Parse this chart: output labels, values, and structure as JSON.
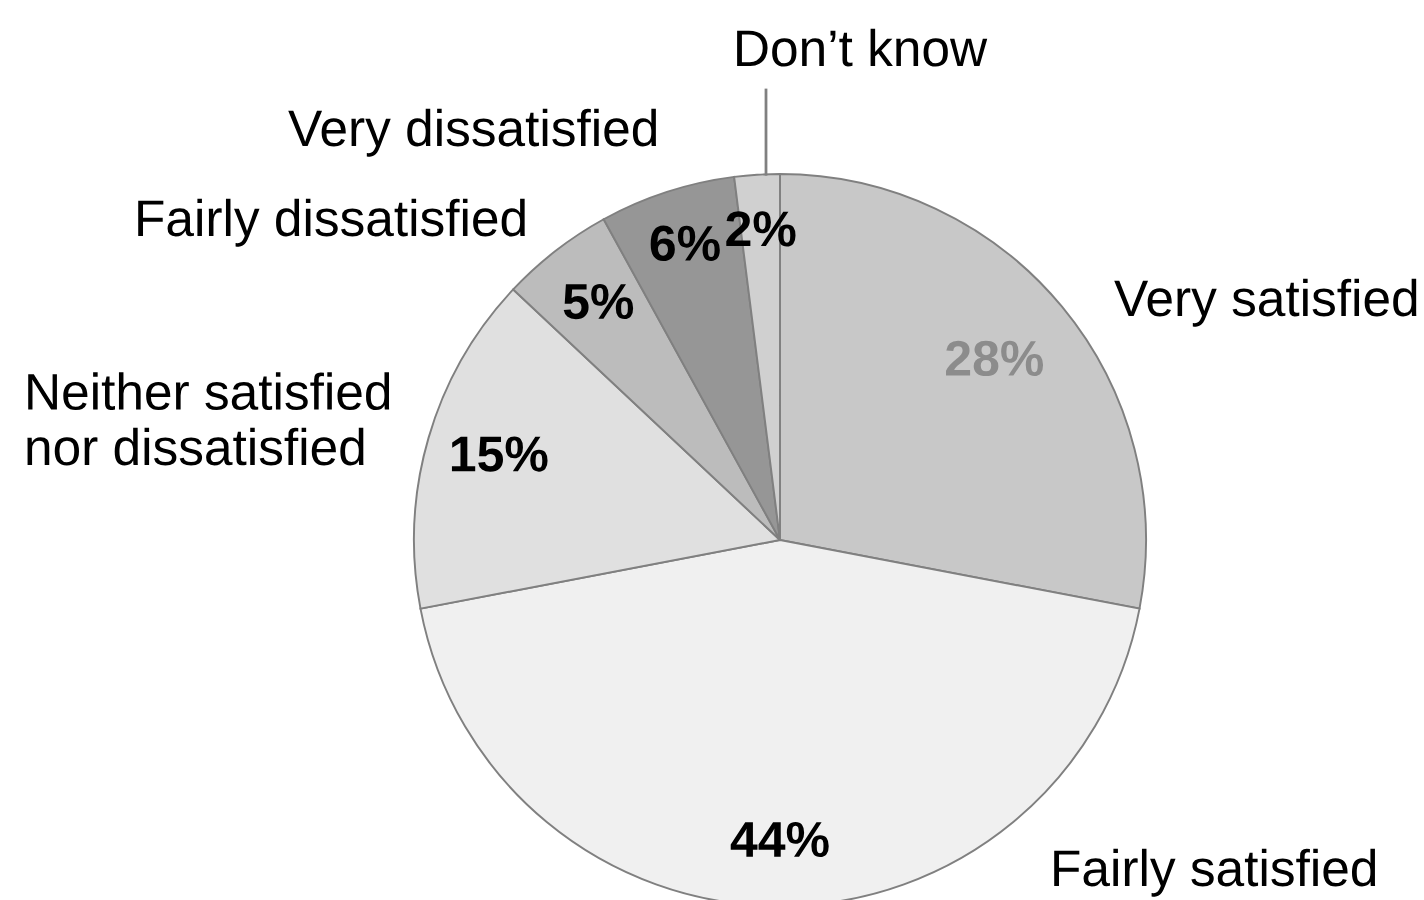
{
  "chart_data": {
    "type": "pie",
    "categories": [
      "Very satisfied",
      "Fairly satisfied",
      "Neither satisfied\nnor dissatisfied",
      "Fairly dissatisfied",
      "Very dissatisfied",
      "Don’t know"
    ],
    "values": [
      28,
      44,
      15,
      5,
      6,
      2
    ],
    "colors": [
      "#c8c8c8",
      "#f0f0f0",
      "#e0e0e0",
      "#bcbcbc",
      "#969696",
      "#d0d0d0"
    ],
    "value_labels": [
      "28%",
      "44%",
      "15%",
      "5%",
      "6%",
      "2%"
    ]
  }
}
